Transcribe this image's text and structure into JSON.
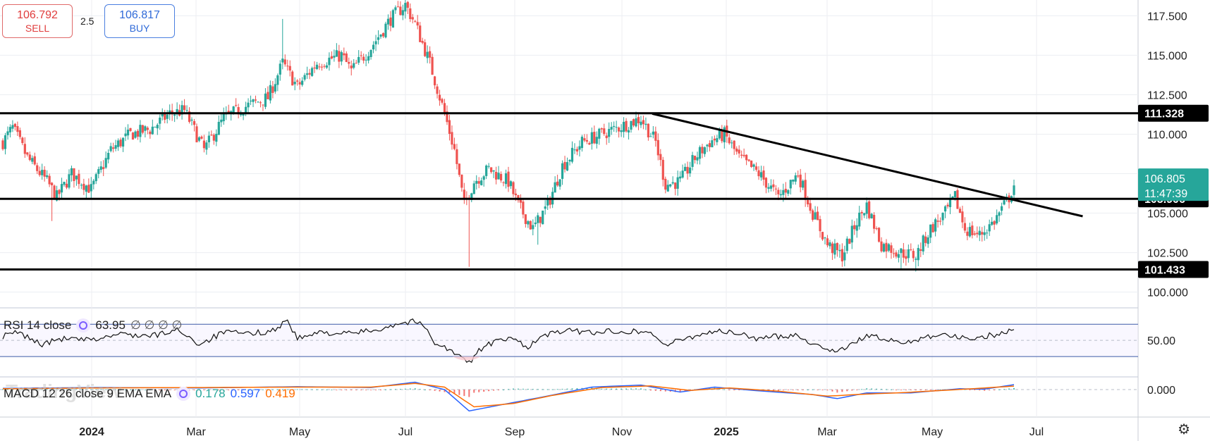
{
  "trade_panel": {
    "sell_price": "106.792",
    "sell_label": "SELL",
    "spread": "2.5",
    "buy_price": "106.817",
    "buy_label": "BUY"
  },
  "watermark": "TradingView",
  "axis_settings_icon": "settings-icon",
  "colors": {
    "up": "#26a69a",
    "down": "#ef5350",
    "last_price_badge": "#26a69a",
    "level_badge": "#000000",
    "macd_line": "#2962ff",
    "signal_line": "#ff6d00"
  },
  "chart_data": [
    {
      "type": "candlestick",
      "pane": "price",
      "x_ticks": [
        "2024",
        "Mar",
        "May",
        "Jul",
        "Sep",
        "Nov",
        "2025",
        "Mar",
        "May",
        "Jul"
      ],
      "y_ticks": [
        "100.000",
        "102.500",
        "105.000",
        "107.500",
        "110.000",
        "112.500",
        "115.000",
        "117.500"
      ],
      "ylim": [
        99,
        118.5
      ],
      "horizontal_levels": [
        {
          "value": 111.328,
          "label": "111.328"
        },
        {
          "value": 105.906,
          "label": "105.906"
        },
        {
          "value": 101.433,
          "label": "101.433"
        }
      ],
      "trendline": {
        "from": {
          "x": 132.3,
          "y": 111.3
        },
        "to": {
          "x": 220,
          "y": 104.8
        }
      },
      "last_price": {
        "value": 106.805,
        "label": "106.805",
        "countdown": "11:47:39"
      },
      "anchors": [
        {
          "x": 0,
          "y": 109.5
        },
        {
          "x": 2,
          "y": 110.4
        },
        {
          "x": 5,
          "y": 108.5
        },
        {
          "x": 9,
          "y": 107.0
        },
        {
          "x": 11,
          "y": 106.0
        },
        {
          "x": 14,
          "y": 107.5
        },
        {
          "x": 18,
          "y": 106.5
        },
        {
          "x": 22,
          "y": 109.0
        },
        {
          "x": 26,
          "y": 110.0
        },
        {
          "x": 30,
          "y": 110.3
        },
        {
          "x": 34,
          "y": 111.3
        },
        {
          "x": 37,
          "y": 111.5
        },
        {
          "x": 41,
          "y": 109.0
        },
        {
          "x": 45,
          "y": 111.0
        },
        {
          "x": 49,
          "y": 111.7
        },
        {
          "x": 54,
          "y": 112.3
        },
        {
          "x": 57,
          "y": 114.5
        },
        {
          "x": 60,
          "y": 113.0
        },
        {
          "x": 64,
          "y": 114.5
        },
        {
          "x": 69,
          "y": 115.0
        },
        {
          "x": 71,
          "y": 114.0
        },
        {
          "x": 75,
          "y": 115.5
        },
        {
          "x": 79,
          "y": 117.3
        },
        {
          "x": 82,
          "y": 118.2
        },
        {
          "x": 84,
          "y": 117.0
        },
        {
          "x": 87,
          "y": 114.5
        },
        {
          "x": 90,
          "y": 111.3
        },
        {
          "x": 92,
          "y": 109.0
        },
        {
          "x": 94,
          "y": 105.5
        },
        {
          "x": 96,
          "y": 107.0
        },
        {
          "x": 99,
          "y": 107.8
        },
        {
          "x": 103,
          "y": 107.0
        },
        {
          "x": 105,
          "y": 105.5
        },
        {
          "x": 108,
          "y": 104.0
        },
        {
          "x": 111,
          "y": 105.5
        },
        {
          "x": 114,
          "y": 108.0
        },
        {
          "x": 118,
          "y": 109.5
        },
        {
          "x": 122,
          "y": 110.0
        },
        {
          "x": 126,
          "y": 110.5
        },
        {
          "x": 130,
          "y": 111.0
        },
        {
          "x": 133,
          "y": 109.5
        },
        {
          "x": 135,
          "y": 106.8
        },
        {
          "x": 138,
          "y": 107.0
        },
        {
          "x": 141,
          "y": 108.5
        },
        {
          "x": 144,
          "y": 109.5
        },
        {
          "x": 147,
          "y": 110.0
        },
        {
          "x": 150,
          "y": 108.5
        },
        {
          "x": 154,
          "y": 107.5
        },
        {
          "x": 158,
          "y": 106.0
        },
        {
          "x": 162,
          "y": 107.5
        },
        {
          "x": 165,
          "y": 105.0
        },
        {
          "x": 168,
          "y": 103.0
        },
        {
          "x": 171,
          "y": 102.3
        },
        {
          "x": 174,
          "y": 104.5
        },
        {
          "x": 176,
          "y": 105.5
        },
        {
          "x": 179,
          "y": 103.0
        },
        {
          "x": 183,
          "y": 102.5
        },
        {
          "x": 186,
          "y": 102.3
        },
        {
          "x": 189,
          "y": 104.0
        },
        {
          "x": 192,
          "y": 105.0
        },
        {
          "x": 194,
          "y": 106.0
        },
        {
          "x": 196,
          "y": 104.0
        },
        {
          "x": 199,
          "y": 103.6
        },
        {
          "x": 202,
          "y": 104.5
        },
        {
          "x": 205,
          "y": 106.0
        },
        {
          "x": 206,
          "y": 106.8
        }
      ],
      "spikes": [
        {
          "x": 10,
          "low": 104.5
        },
        {
          "x": 57,
          "high": 117.3
        },
        {
          "x": 95,
          "low": 101.6
        },
        {
          "x": 109,
          "low": 103.0
        },
        {
          "x": 171,
          "low": 101.6
        },
        {
          "x": 183,
          "low": 101.5
        },
        {
          "x": 186,
          "low": 101.3
        }
      ]
    },
    {
      "type": "line",
      "pane": "rsi",
      "title": "RSI 14 close",
      "value": "63.95",
      "placeholders": "∅ ∅ ∅ ∅",
      "y_ticks": [
        "50.00"
      ],
      "ylim": [
        10,
        85
      ],
      "bands": [
        70,
        50,
        30
      ],
      "anchors": [
        {
          "x": 0,
          "y": 55
        },
        {
          "x": 3,
          "y": 60
        },
        {
          "x": 8,
          "y": 45
        },
        {
          "x": 12,
          "y": 52
        },
        {
          "x": 18,
          "y": 50
        },
        {
          "x": 24,
          "y": 58
        },
        {
          "x": 30,
          "y": 55
        },
        {
          "x": 36,
          "y": 63
        },
        {
          "x": 40,
          "y": 45
        },
        {
          "x": 45,
          "y": 60
        },
        {
          "x": 50,
          "y": 58
        },
        {
          "x": 55,
          "y": 62
        },
        {
          "x": 58,
          "y": 75
        },
        {
          "x": 60,
          "y": 52
        },
        {
          "x": 65,
          "y": 60
        },
        {
          "x": 70,
          "y": 58
        },
        {
          "x": 76,
          "y": 63
        },
        {
          "x": 80,
          "y": 70
        },
        {
          "x": 84,
          "y": 74
        },
        {
          "x": 86,
          "y": 66
        },
        {
          "x": 88,
          "y": 48
        },
        {
          "x": 91,
          "y": 38
        },
        {
          "x": 94,
          "y": 26
        },
        {
          "x": 95,
          "y": 22
        },
        {
          "x": 97,
          "y": 38
        },
        {
          "x": 100,
          "y": 48
        },
        {
          "x": 104,
          "y": 52
        },
        {
          "x": 107,
          "y": 42
        },
        {
          "x": 110,
          "y": 55
        },
        {
          "x": 114,
          "y": 62
        },
        {
          "x": 120,
          "y": 60
        },
        {
          "x": 126,
          "y": 62
        },
        {
          "x": 132,
          "y": 60
        },
        {
          "x": 135,
          "y": 44
        },
        {
          "x": 140,
          "y": 54
        },
        {
          "x": 145,
          "y": 62
        },
        {
          "x": 150,
          "y": 58
        },
        {
          "x": 154,
          "y": 52
        },
        {
          "x": 158,
          "y": 55
        },
        {
          "x": 162,
          "y": 57
        },
        {
          "x": 165,
          "y": 45
        },
        {
          "x": 169,
          "y": 38
        },
        {
          "x": 172,
          "y": 40
        },
        {
          "x": 176,
          "y": 57
        },
        {
          "x": 180,
          "y": 50
        },
        {
          "x": 184,
          "y": 47
        },
        {
          "x": 188,
          "y": 55
        },
        {
          "x": 192,
          "y": 58
        },
        {
          "x": 196,
          "y": 52
        },
        {
          "x": 200,
          "y": 55
        },
        {
          "x": 204,
          "y": 59
        },
        {
          "x": 206,
          "y": 64
        }
      ]
    },
    {
      "type": "line",
      "pane": "macd",
      "title": "MACD 12 26 close 9 EMA EMA",
      "values": [
        "0.178",
        "0.597",
        "0.419"
      ],
      "y_ticks": [
        "0.000"
      ],
      "ylim": [
        -3,
        1.2
      ],
      "series": [
        {
          "key": "macd",
          "anchors": [
            {
              "x": 0,
              "y": 0.15
            },
            {
              "x": 20,
              "y": 0.25
            },
            {
              "x": 40,
              "y": 0.2
            },
            {
              "x": 60,
              "y": 0.35
            },
            {
              "x": 75,
              "y": 0.25
            },
            {
              "x": 84,
              "y": 0.9
            },
            {
              "x": 90,
              "y": 0
            },
            {
              "x": 95,
              "y": -2.6
            },
            {
              "x": 102,
              "y": -1.8
            },
            {
              "x": 110,
              "y": -0.9
            },
            {
              "x": 120,
              "y": 0.3
            },
            {
              "x": 130,
              "y": 0.55
            },
            {
              "x": 138,
              "y": -0.3
            },
            {
              "x": 145,
              "y": 0.3
            },
            {
              "x": 155,
              "y": -0.2
            },
            {
              "x": 165,
              "y": -0.6
            },
            {
              "x": 170,
              "y": -1.1
            },
            {
              "x": 176,
              "y": -0.4
            },
            {
              "x": 185,
              "y": -0.4
            },
            {
              "x": 195,
              "y": 0.1
            },
            {
              "x": 200,
              "y": 0.05
            },
            {
              "x": 206,
              "y": 0.6
            }
          ]
        },
        {
          "key": "signal",
          "anchors": [
            {
              "x": 0,
              "y": 0.1
            },
            {
              "x": 20,
              "y": 0.2
            },
            {
              "x": 40,
              "y": 0.25
            },
            {
              "x": 60,
              "y": 0.3
            },
            {
              "x": 75,
              "y": 0.3
            },
            {
              "x": 84,
              "y": 0.75
            },
            {
              "x": 90,
              "y": 0.3
            },
            {
              "x": 96,
              "y": -2.1
            },
            {
              "x": 104,
              "y": -1.7
            },
            {
              "x": 112,
              "y": -0.7
            },
            {
              "x": 122,
              "y": 0.25
            },
            {
              "x": 132,
              "y": 0.45
            },
            {
              "x": 140,
              "y": -0.1
            },
            {
              "x": 148,
              "y": 0.2
            },
            {
              "x": 158,
              "y": -0.2
            },
            {
              "x": 168,
              "y": -0.8
            },
            {
              "x": 174,
              "y": -0.6
            },
            {
              "x": 184,
              "y": -0.35
            },
            {
              "x": 196,
              "y": 0.05
            },
            {
              "x": 206,
              "y": 0.42
            }
          ]
        }
      ]
    }
  ]
}
